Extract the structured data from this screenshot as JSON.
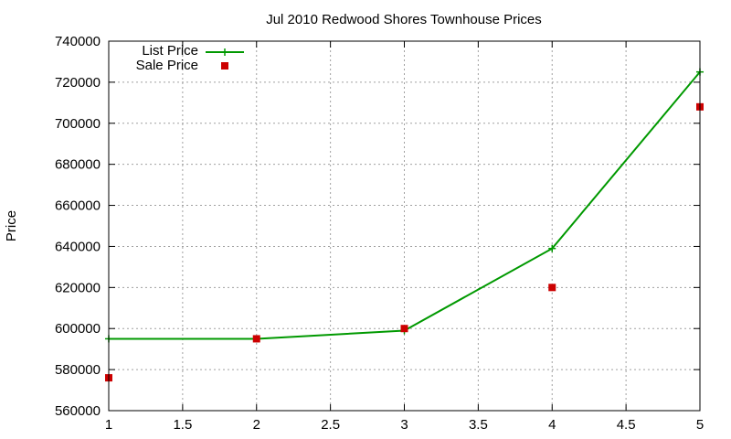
{
  "chart_data": {
    "type": "line",
    "title": "Jul 2010 Redwood Shores Townhouse Prices",
    "xlabel": "",
    "ylabel": "Price",
    "xlim": [
      1,
      5
    ],
    "ylim": [
      560000,
      740000
    ],
    "x_ticks": [
      "1",
      "1.5",
      "2",
      "2.5",
      "3",
      "3.5",
      "4",
      "4.5",
      "5"
    ],
    "y_ticks": [
      "560000",
      "580000",
      "600000",
      "620000",
      "640000",
      "660000",
      "680000",
      "700000",
      "720000",
      "740000"
    ],
    "grid": true,
    "legend_position": "top-left",
    "series": [
      {
        "name": "List Price",
        "style": "line-with-plus-markers",
        "color": "#009900",
        "x": [
          1,
          2,
          3,
          4,
          5
        ],
        "values": [
          595000,
          595000,
          599000,
          639000,
          725000
        ]
      },
      {
        "name": "Sale Price",
        "style": "square-markers",
        "color": "#cc0000",
        "x": [
          1,
          2,
          3,
          4,
          5
        ],
        "values": [
          576000,
          595000,
          600000,
          620000,
          708000
        ]
      }
    ]
  }
}
